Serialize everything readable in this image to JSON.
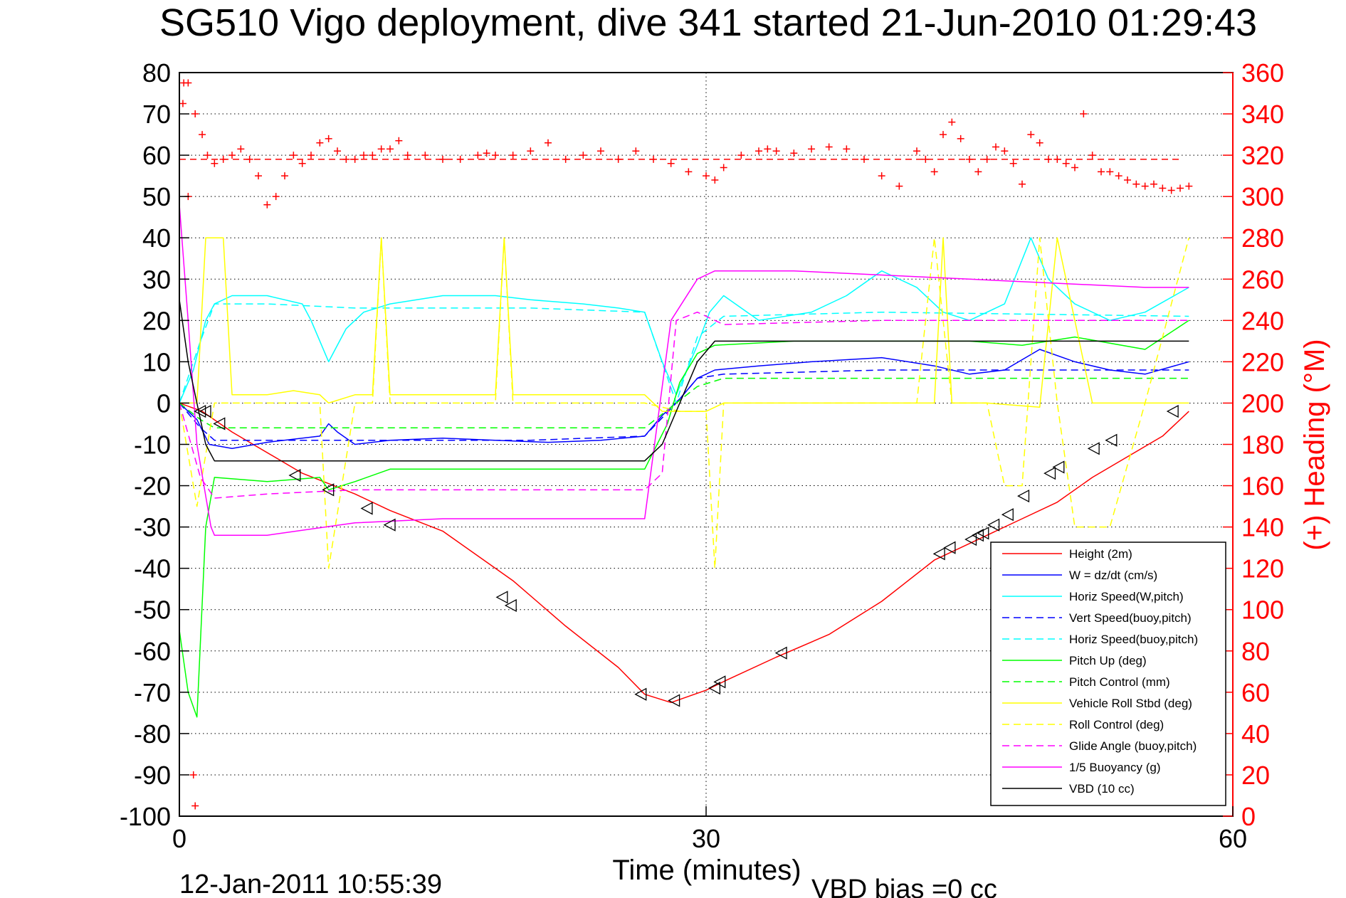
{
  "chart_data": {
    "type": "line",
    "title": "SG510 Vigo deployment, dive 341 started 21-Jun-2010 01:29:43",
    "xlabel": "Time (minutes)",
    "ylabel_right": "(+) Heading (°M)",
    "footer_date": "12-Jan-2011 10:55:39",
    "footer_bias": "VBD bias =0 cc",
    "xlim": [
      0,
      60
    ],
    "ylim": [
      -100,
      80
    ],
    "ylim_right": [
      0,
      360
    ],
    "x_ticks": [
      0,
      30,
      60
    ],
    "y_ticks": [
      80,
      70,
      60,
      50,
      40,
      30,
      20,
      10,
      0,
      -10,
      -20,
      -30,
      -40,
      -50,
      -60,
      -70,
      -80,
      -90,
      -100
    ],
    "y_ticks_right": [
      360,
      340,
      320,
      300,
      280,
      260,
      240,
      220,
      200,
      180,
      160,
      140,
      120,
      100,
      80,
      60,
      40,
      20,
      0
    ],
    "grid": "dotted at x=30 and at every y tick",
    "legend_position": "bottom-right",
    "heading_reference": 318,
    "series": [
      {
        "name": "Height (2m)",
        "color": "#ff0000",
        "style": "solid",
        "x": [
          0,
          1.3,
          3,
          7,
          10,
          12,
          15,
          19,
          22,
          25,
          26.5,
          28,
          30,
          31.2,
          34,
          37,
          40,
          43,
          46,
          48,
          50,
          52,
          54,
          56,
          57.5
        ],
        "y": [
          0,
          -2,
          -7,
          -17,
          -22,
          -26,
          -31,
          -43,
          -54,
          -64,
          -70.5,
          -72.5,
          -69.5,
          -67,
          -61.5,
          -56,
          -48,
          -38,
          -32,
          -28,
          -24,
          -18,
          -13,
          -8,
          -2
        ]
      },
      {
        "name": "W = dz/dt (cm/s)",
        "color": "#0000ff",
        "style": "solid",
        "x": [
          0,
          1,
          1.7,
          3,
          5,
          8,
          8.5,
          9,
          10,
          12,
          15,
          18,
          21,
          24,
          26.5,
          27.5,
          28.5,
          29.5,
          30.5,
          33,
          36,
          40,
          43,
          45,
          47,
          49,
          51,
          53,
          55,
          57.5
        ],
        "y": [
          0,
          -4,
          -10,
          -11,
          -9.5,
          -8,
          -5,
          -7,
          -10,
          -9,
          -8.5,
          -9,
          -9.5,
          -9,
          -8,
          -3,
          1,
          6,
          8,
          9,
          10,
          11,
          9,
          7,
          8,
          13,
          10,
          8,
          7,
          10
        ]
      },
      {
        "name": "Horiz Speed(W,pitch)",
        "color": "#00ffff",
        "style": "solid",
        "x": [
          0,
          0.8,
          1.5,
          2,
          3,
          5,
          7,
          7.5,
          8.5,
          9.5,
          10.5,
          12,
          15,
          18,
          20,
          23,
          25,
          26.5,
          27.5,
          28.3,
          29.5,
          30.2,
          31,
          33,
          36,
          38,
          40,
          42,
          43.5,
          45,
          47,
          48.5,
          49.5,
          51,
          53,
          55,
          57.5
        ],
        "y": [
          0,
          8,
          20,
          24,
          26,
          26,
          24,
          20,
          10,
          18,
          22,
          24,
          26,
          26,
          25,
          24,
          23,
          22,
          10,
          2,
          14,
          22,
          26,
          20,
          22,
          26,
          32,
          28,
          22,
          20,
          24,
          40,
          30,
          24,
          20,
          22,
          28
        ]
      },
      {
        "name": "Vert Speed(buoy,pitch)",
        "color": "#0000ff",
        "style": "dashed",
        "x": [
          0,
          1.2,
          2,
          5,
          10,
          20,
          26.5,
          28.3,
          29.5,
          31,
          40,
          57.5
        ],
        "y": [
          0,
          -6,
          -9,
          -9,
          -9,
          -9,
          -8,
          0,
          6,
          7,
          8,
          8
        ]
      },
      {
        "name": "Horiz Speed(buoy,pitch)",
        "color": "#00ffff",
        "style": "dashed",
        "x": [
          0,
          1.2,
          2,
          5,
          10,
          20,
          26.5,
          28.3,
          29.5,
          31,
          40,
          57.5
        ],
        "y": [
          0,
          15,
          24,
          24,
          23,
          23,
          22,
          0,
          16,
          21,
          22,
          21
        ]
      },
      {
        "name": "Pitch Up (deg)",
        "color": "#00ff00",
        "style": "solid",
        "x": [
          0,
          0.5,
          1,
          1.5,
          2,
          5,
          8,
          8.5,
          10,
          12,
          20,
          26.5,
          27.8,
          28.5,
          29.5,
          30.5,
          35,
          40,
          45,
          48,
          51,
          55,
          57.5
        ],
        "y": [
          -55,
          -70,
          -76,
          -30,
          -18,
          -19,
          -18,
          -21,
          -19,
          -16,
          -16,
          -16,
          -5,
          5,
          12,
          14,
          15,
          15,
          15,
          14,
          16,
          13,
          20
        ]
      },
      {
        "name": "Pitch Control (mm)",
        "color": "#00ff00",
        "style": "dashed",
        "x": [
          0,
          1.2,
          2,
          5,
          10,
          20,
          26.5,
          28.3,
          29.5,
          31,
          40,
          57.5
        ],
        "y": [
          0,
          -4,
          -6,
          -6,
          -6,
          -6,
          -6,
          0,
          4,
          6,
          6,
          6
        ]
      },
      {
        "name": "Vehicle Roll Stbd (deg)",
        "color": "#ffff00",
        "style": "solid",
        "x": [
          0,
          1,
          1.5,
          2.5,
          3,
          5,
          6.5,
          8,
          8.5,
          10,
          11,
          11.5,
          12,
          15,
          18,
          18.5,
          19,
          20,
          24,
          26.5,
          27.5,
          28.5,
          30,
          31,
          43,
          43.5,
          44,
          46,
          49,
          50,
          52,
          53,
          55,
          57.5
        ],
        "y": [
          0,
          0,
          40,
          40,
          2,
          2,
          3,
          2,
          0,
          2,
          2,
          40,
          2,
          2,
          2,
          40,
          2,
          2,
          2,
          2,
          -2,
          -2,
          -2,
          0,
          0,
          40,
          0,
          0,
          -1,
          40,
          0,
          0,
          0,
          0
        ]
      },
      {
        "name": "Roll Control (deg)",
        "color": "#ffff00",
        "style": "dashed",
        "x": [
          0,
          1,
          2,
          5,
          8,
          8.5,
          10,
          11,
          11.5,
          12,
          15,
          18,
          18.5,
          19,
          20,
          26.5,
          28.5,
          30,
          30.5,
          31,
          42,
          43,
          44,
          46,
          47,
          48,
          49,
          50,
          51,
          53,
          55,
          57.5
        ],
        "y": [
          0,
          -25,
          0,
          0,
          0,
          -40,
          0,
          0,
          40,
          0,
          0,
          0,
          40,
          0,
          0,
          0,
          -2,
          -2,
          -40,
          0,
          0,
          40,
          0,
          0,
          -20,
          -20,
          40,
          0,
          -30,
          -30,
          0,
          40
        ]
      },
      {
        "name": "Glide Angle (buoy,pitch)",
        "color": "#ff00ff",
        "style": "dashed",
        "x": [
          0,
          1.2,
          2,
          5,
          10,
          20,
          26.5,
          27.5,
          28.3,
          29.5,
          31,
          40,
          57.5
        ],
        "y": [
          0,
          -18,
          -23,
          -22,
          -21,
          -21,
          -21,
          -17,
          20,
          22,
          19,
          20,
          20
        ]
      },
      {
        "name": "1/5 Buoyancy (g)",
        "color": "#ff00ff",
        "style": "solid",
        "x": [
          0,
          0.5,
          1,
          1.8,
          2,
          5,
          10,
          15,
          20,
          26.5,
          28,
          29.5,
          30.5,
          35,
          40,
          45,
          50,
          55,
          57.5
        ],
        "y": [
          48,
          20,
          -10,
          -30,
          -32,
          -32,
          -29,
          -28,
          -28,
          -28,
          20,
          30,
          32,
          32,
          31,
          30,
          29,
          28,
          28
        ]
      },
      {
        "name": "VBD (10 cc)",
        "color": "#000000",
        "style": "solid",
        "x": [
          0,
          0.5,
          1.5,
          2,
          26.5,
          27.5,
          29.5,
          30.5,
          57.5
        ],
        "y": [
          25,
          10,
          -10,
          -14,
          -14,
          -10,
          10,
          15,
          15
        ]
      },
      {
        "name": "Heading",
        "color": "#ff0000",
        "style": "markers-plus",
        "axis": "right",
        "x": [
          0.2,
          0.5,
          0.9,
          1.3,
          1.6,
          2,
          2.5,
          3,
          3.5,
          4,
          4.5,
          5,
          5.5,
          6,
          6.5,
          7,
          7.5,
          8,
          8.5,
          9,
          9.5,
          10,
          10.5,
          11,
          11.5,
          12,
          12.5,
          13,
          14,
          15,
          16,
          17,
          17.5,
          18,
          19,
          20,
          21,
          22,
          23,
          24,
          25,
          26,
          27,
          28,
          29,
          30,
          30.5,
          31,
          32,
          33,
          33.5,
          34,
          35,
          36,
          37,
          38,
          39,
          40,
          41,
          42,
          42.5,
          43,
          43.5,
          44,
          44.5,
          45,
          45.5,
          46,
          46.5,
          47,
          47.5,
          48,
          48.5,
          49,
          49.5,
          50,
          50.5,
          51,
          51.5,
          52,
          52.5,
          53,
          53.5,
          54,
          54.5,
          55,
          55.5,
          56,
          56.5,
          57,
          57.5
        ],
        "y": [
          345,
          300,
          340,
          330,
          320,
          316,
          318,
          320,
          323,
          318,
          310,
          296,
          300,
          310,
          320,
          316,
          320,
          326,
          328,
          322,
          318,
          318,
          320,
          320,
          323,
          323,
          327,
          320,
          320,
          318,
          318,
          320,
          321,
          320,
          320,
          322,
          326,
          318,
          320,
          322,
          318,
          322,
          318,
          316,
          312,
          310,
          308,
          314,
          320,
          322,
          323,
          322,
          321,
          323,
          324,
          323,
          318,
          310,
          305,
          322,
          318,
          312,
          330,
          336,
          328,
          318,
          312,
          318,
          324,
          322,
          316,
          306,
          330,
          326,
          318,
          318,
          316,
          314,
          340,
          320,
          312,
          312,
          310,
          308,
          306,
          305,
          306,
          304,
          303,
          304,
          305
        ]
      },
      {
        "name": "",
        "color": "#ff0000",
        "style": "markers-plus",
        "axis": "right",
        "x": [
          0.25,
          0.5,
          0.8,
          0.9
        ],
        "y": [
          355,
          355,
          20,
          5
        ]
      },
      {
        "name": "",
        "color": "#000000",
        "style": "triangle-markers",
        "x": [
          1.2,
          1.5,
          2.3,
          6.6,
          8.5,
          10.7,
          12,
          18.4,
          18.9,
          26.3,
          28.2,
          30.5,
          30.8,
          34.3,
          43.3,
          43.9,
          45.1,
          45.5,
          45.8,
          46.4,
          47.2,
          48.1,
          49.6,
          50.1,
          52.1,
          53.1,
          56.6
        ],
        "y": [
          -2,
          -2,
          -5,
          -17.5,
          -21,
          -25.5,
          -29.5,
          -47,
          -49,
          -70.5,
          -72,
          -69,
          -67.5,
          -60.5,
          -36.5,
          -35,
          -33,
          -32,
          -31.5,
          -29.5,
          -27,
          -22.5,
          -17,
          -15.5,
          -11,
          -9,
          -2
        ]
      }
    ]
  }
}
